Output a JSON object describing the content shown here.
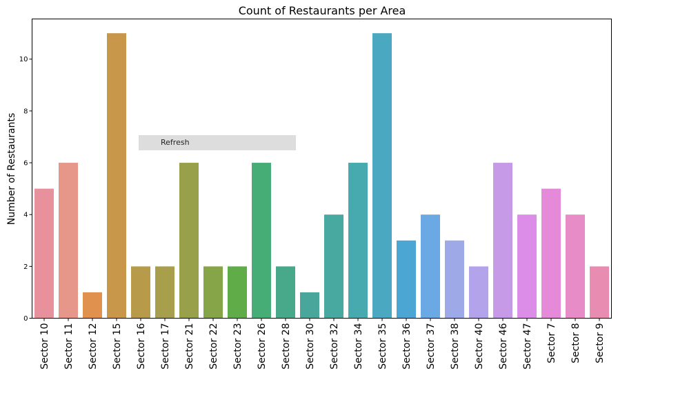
{
  "chart_data": {
    "type": "bar",
    "title": "Count of Restaurants per Area",
    "xlabel": "",
    "ylabel": "Number of Restaurants",
    "ylim": [
      0,
      11.55
    ],
    "yticks": [
      0,
      2,
      4,
      6,
      8,
      10
    ],
    "grid": false,
    "categories": [
      "Sector 10",
      "Sector 11",
      "Sector 12",
      "Sector 15",
      "Sector 16",
      "Sector 17",
      "Sector 21",
      "Sector 22",
      "Sector 23",
      "Sector 26",
      "Sector 28",
      "Sector 30",
      "Sector 32",
      "Sector 34",
      "Sector 35",
      "Sector 36",
      "Sector 37",
      "Sector 38",
      "Sector 40",
      "Sector 46",
      "Sector 47",
      "Sector 7",
      "Sector 8",
      "Sector 9"
    ],
    "values": [
      5,
      6,
      1,
      11,
      2,
      2,
      6,
      2,
      2,
      6,
      2,
      1,
      4,
      6,
      11,
      3,
      4,
      3,
      2,
      6,
      4,
      5,
      4,
      2
    ],
    "colors": [
      "#e8919c",
      "#e6978a",
      "#e0914e",
      "#c9974a",
      "#b89b4a",
      "#a89f4c",
      "#99a04a",
      "#86a548",
      "#5fac48",
      "#47ad76",
      "#47a88a",
      "#48a79a",
      "#48a9a0",
      "#47aaae",
      "#4aa9c0",
      "#4ba6d4",
      "#6aa9e4",
      "#9ea9e8",
      "#b3a3ea",
      "#c79ae8",
      "#dc8de8",
      "#e58ad9",
      "#e78cc6",
      "#e88cb1"
    ]
  },
  "overlay": {
    "refresh_label": "Refresh"
  }
}
